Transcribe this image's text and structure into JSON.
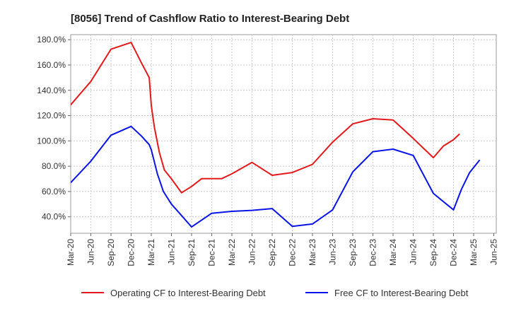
{
  "chart_data": {
    "type": "line",
    "title": "[8056]  Trend of Cashflow Ratio to Interest-Bearing Debt",
    "xlabel": "",
    "ylabel": "",
    "x": [
      "Mar-20",
      "Jun-20",
      "Sep-20",
      "Dec-20",
      "Mar-21",
      "Jun-21",
      "Sep-21",
      "Dec-21",
      "Mar-22",
      "Jun-22",
      "Sep-22",
      "Dec-22",
      "Mar-23",
      "Jun-23",
      "Sep-23",
      "Dec-23",
      "Mar-24",
      "Jun-24",
      "Sep-24",
      "Dec-24",
      "Mar-25",
      "Jun-25"
    ],
    "y_ticks": [
      "40.0%",
      "60.0%",
      "80.0%",
      "100.0%",
      "120.0%",
      "140.0%",
      "160.0%",
      "180.0%"
    ],
    "y_tick_values": [
      40,
      60,
      80,
      100,
      120,
      140,
      160,
      180
    ],
    "ylim": [
      27,
      184
    ],
    "grid": true,
    "legend_position": "bottom",
    "series": [
      {
        "name": "Operating CF to Interest-Bearing Debt",
        "color": "#e31a1c",
        "points": [
          [
            0,
            128.5
          ],
          [
            1,
            147
          ],
          [
            2,
            172.5
          ],
          [
            3,
            177.8
          ],
          [
            3.5,
            162
          ],
          [
            3.9,
            150
          ],
          [
            4,
            128
          ],
          [
            4.15,
            111
          ],
          [
            4.4,
            91
          ],
          [
            4.65,
            77
          ],
          [
            5,
            70
          ],
          [
            5.5,
            59
          ],
          [
            6,
            64
          ],
          [
            6.5,
            70.2
          ],
          [
            7,
            70.2
          ],
          [
            7.5,
            70.2
          ],
          [
            8,
            74
          ],
          [
            9,
            83
          ],
          [
            10,
            72.8
          ],
          [
            11,
            75
          ],
          [
            12,
            81.5
          ],
          [
            13,
            99
          ],
          [
            14,
            113.5
          ],
          [
            15,
            117.5
          ],
          [
            16,
            116.5
          ],
          [
            17,
            102
          ],
          [
            18,
            86.7
          ],
          [
            18.5,
            96
          ],
          [
            19,
            101
          ],
          [
            19.3,
            105.5
          ]
        ]
      },
      {
        "name": "Free CF to Interest-Bearing Debt",
        "color": "#0a14e6",
        "points": [
          [
            0,
            67
          ],
          [
            1,
            84
          ],
          [
            2,
            104.5
          ],
          [
            3,
            111.5
          ],
          [
            3.5,
            104
          ],
          [
            3.9,
            97
          ],
          [
            4,
            93
          ],
          [
            4.3,
            74
          ],
          [
            4.6,
            60
          ],
          [
            5,
            50
          ],
          [
            5.5,
            41
          ],
          [
            6,
            32
          ],
          [
            7,
            42.8
          ],
          [
            8,
            44.3
          ],
          [
            9,
            45.1
          ],
          [
            10,
            46.5
          ],
          [
            11,
            32.5
          ],
          [
            12,
            34.3
          ],
          [
            13,
            45.5
          ],
          [
            14,
            75.5
          ],
          [
            15,
            91.5
          ],
          [
            16,
            93.5
          ],
          [
            17,
            88.5
          ],
          [
            18,
            58.5
          ],
          [
            19,
            45.5
          ],
          [
            19.4,
            62
          ],
          [
            19.8,
            75
          ],
          [
            20.3,
            85
          ]
        ]
      }
    ]
  }
}
